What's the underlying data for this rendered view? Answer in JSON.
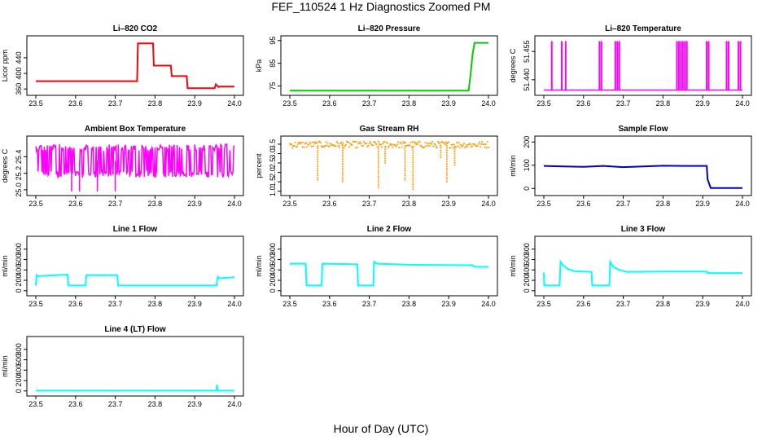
{
  "main_title": "FEF_110524  1 Hz Diagnostics Zoomed PM",
  "x_axis_title": "Hour of Day (UTC)",
  "chart_data": [
    {
      "type": "line",
      "title": "Li–820 CO2",
      "ylabel": "Licor ppm",
      "color": "#ff0000",
      "xlim": [
        23.5,
        24.0
      ],
      "ylim": [
        350,
        490
      ],
      "xticks": [
        "23.5",
        "23.6",
        "23.7",
        "23.8",
        "23.9",
        "24.0"
      ],
      "yticks": [
        "360",
        "400",
        "440"
      ],
      "ytick_values": [
        360,
        400,
        440
      ],
      "series": [
        {
          "x": [
            23.5,
            23.6,
            23.7,
            23.755,
            23.757,
            23.795,
            23.797,
            23.84,
            23.842,
            23.88,
            23.882,
            23.95,
            23.953,
            23.96,
            23.962,
            24.0
          ],
          "y": [
            380,
            380,
            380,
            380,
            477,
            477,
            420,
            420,
            393,
            393,
            362,
            362,
            372,
            365,
            366,
            366
          ]
        }
      ]
    },
    {
      "type": "line",
      "title": "Li–820 Pressure",
      "ylabel": "kPa",
      "color": "#00cc00",
      "xlim": [
        23.5,
        24.0
      ],
      "ylim": [
        72,
        96
      ],
      "xticks": [
        "23.5",
        "23.6",
        "23.7",
        "23.8",
        "23.9",
        "24.0"
      ],
      "yticks": [
        "75",
        "85",
        "95"
      ],
      "ytick_values": [
        75,
        85,
        95
      ],
      "series": [
        {
          "x": [
            23.5,
            23.92,
            23.94,
            23.95,
            23.955,
            23.96,
            23.965,
            24.0
          ],
          "y": [
            73,
            73,
            73,
            73,
            80,
            89,
            94,
            94
          ]
        }
      ]
    },
    {
      "type": "line",
      "title": "Li–820 Temperature",
      "ylabel": "degrees C",
      "color": "#ff00ff",
      "xlim": [
        23.5,
        24.0
      ],
      "ylim": [
        51.433,
        51.462
      ],
      "xticks": [
        "23.5",
        "23.6",
        "23.7",
        "23.8",
        "23.9",
        "24.0"
      ],
      "yticks": [
        "51.440",
        "51.455"
      ],
      "ytick_values": [
        51.44,
        51.455
      ],
      "spike_low": 51.4345,
      "spike_high": 51.4605,
      "spikes": [
        23.52,
        23.545,
        23.555,
        23.64,
        23.645,
        23.68,
        23.685,
        23.69,
        23.835,
        23.84,
        23.845,
        23.85,
        23.855,
        23.86,
        23.91,
        23.915,
        23.96,
        23.965,
        23.99,
        23.995
      ]
    },
    {
      "type": "line",
      "title": "Ambient Box Temperature",
      "ylabel": "degrees C",
      "color": "#ff00ff",
      "xlim": [
        23.5,
        24.0
      ],
      "ylim": [
        24.96,
        25.62
      ],
      "xticks": [
        "23.5",
        "23.6",
        "23.7",
        "23.8",
        "23.9",
        "24.0"
      ],
      "yticks": [
        "25.0",
        "25.2",
        "25.4"
      ],
      "ytick_values": [
        25.0,
        25.2,
        25.4
      ],
      "noise": {
        "low": 25.15,
        "high": 25.55,
        "mid": 25.35,
        "dips": [
          23.59,
          23.61,
          23.655,
          23.7
        ]
      }
    },
    {
      "type": "scatter",
      "title": "Gas Stream RH",
      "ylabel": "percent",
      "color": "#ff9900",
      "xlim": [
        23.5,
        24.0
      ],
      "ylim": [
        0.9,
        3.8
      ],
      "xticks": [
        "23.5",
        "23.6",
        "23.7",
        "23.8",
        "23.9",
        "24.0"
      ],
      "yticks": [
        "1.0",
        "1.5",
        "2.0",
        "2.5",
        "3.0",
        "3.5"
      ],
      "ytick_values": [
        1.0,
        1.5,
        2.0,
        2.5,
        3.0,
        3.5
      ],
      "noise": {
        "low": 3.3,
        "high": 3.65,
        "mid": 3.45
      },
      "dips": [
        {
          "x": 23.57,
          "y": 1.6
        },
        {
          "x": 23.633,
          "y": 1.5
        },
        {
          "x": 23.723,
          "y": 1.2
        },
        {
          "x": 23.74,
          "y": 2.5
        },
        {
          "x": 23.79,
          "y": 1.6
        },
        {
          "x": 23.81,
          "y": 1.1
        },
        {
          "x": 23.88,
          "y": 2.8
        },
        {
          "x": 23.895,
          "y": 1.5
        },
        {
          "x": 23.915,
          "y": 2.4
        }
      ]
    },
    {
      "type": "line",
      "title": "Sample Flow",
      "ylabel": "ml/min",
      "color": "#0000cc",
      "xlim": [
        23.5,
        24.0
      ],
      "ylim": [
        -20,
        215
      ],
      "xticks": [
        "23.5",
        "23.6",
        "23.7",
        "23.8",
        "23.9",
        "24.0"
      ],
      "yticks": [
        "0",
        "100",
        "200"
      ],
      "ytick_values": [
        0,
        100,
        200
      ],
      "series": [
        {
          "x": [
            23.5,
            23.55,
            23.6,
            23.65,
            23.7,
            23.75,
            23.8,
            23.85,
            23.91,
            23.912,
            23.92,
            24.0
          ],
          "y": [
            97,
            95,
            93,
            97,
            92,
            95,
            98,
            97,
            97,
            40,
            2,
            2
          ]
        }
      ]
    },
    {
      "type": "line",
      "title": "Line 1 Flow",
      "ylabel": "ml/min",
      "color": "#00ffff",
      "xlim": [
        23.5,
        24.0
      ],
      "ylim": [
        -50,
        1000
      ],
      "xticks": [
        "23.5",
        "23.6",
        "23.7",
        "23.8",
        "23.9",
        "24.0"
      ],
      "yticks": [
        "0",
        "200",
        "400",
        "600",
        "800"
      ],
      "ytick_values": [
        0,
        200,
        400,
        600,
        800
      ],
      "series": [
        {
          "x": [
            23.5,
            23.502,
            23.504,
            23.58,
            23.582,
            23.625,
            23.627,
            23.705,
            23.707,
            23.955,
            23.958,
            23.96,
            24.0
          ],
          "y": [
            100,
            300,
            280,
            310,
            100,
            100,
            300,
            300,
            100,
            100,
            280,
            240,
            260
          ]
        }
      ]
    },
    {
      "type": "line",
      "title": "Line 2 Flow",
      "ylabel": "ml/min",
      "color": "#00ffff",
      "xlim": [
        23.5,
        24.0
      ],
      "ylim": [
        -50,
        1000
      ],
      "xticks": [
        "23.5",
        "23.6",
        "23.7",
        "23.8",
        "23.9",
        "24.0"
      ],
      "yticks": [
        "0",
        "200",
        "400",
        "600",
        "800"
      ],
      "ytick_values": [
        0,
        200,
        400,
        600,
        800
      ],
      "series": [
        {
          "x": [
            23.5,
            23.54,
            23.542,
            23.58,
            23.582,
            23.67,
            23.672,
            23.71,
            23.712,
            23.72,
            23.8,
            23.96,
            23.965,
            24.0
          ],
          "y": [
            520,
            520,
            100,
            100,
            520,
            510,
            100,
            100,
            560,
            520,
            500,
            490,
            460,
            460
          ]
        }
      ]
    },
    {
      "type": "line",
      "title": "Line 3 Flow",
      "ylabel": "ml/min",
      "color": "#00ffff",
      "xlim": [
        23.5,
        24.0
      ],
      "ylim": [
        -50,
        1000
      ],
      "xticks": [
        "23.5",
        "23.6",
        "23.7",
        "23.8",
        "23.9",
        "24.0"
      ],
      "yticks": [
        "0",
        "200",
        "400",
        "600",
        "800"
      ],
      "ytick_values": [
        0,
        200,
        400,
        600,
        800
      ],
      "series": [
        {
          "x": [
            23.5,
            23.501,
            23.503,
            23.54,
            23.542,
            23.55,
            23.56,
            23.575,
            23.62,
            23.622,
            23.665,
            23.667,
            23.675,
            23.69,
            23.71,
            23.8,
            23.9,
            23.91,
            23.912,
            24.0
          ],
          "y": [
            350,
            100,
            100,
            100,
            560,
            480,
            420,
            380,
            360,
            100,
            100,
            560,
            460,
            400,
            360,
            370,
            370,
            370,
            340,
            340
          ]
        }
      ]
    },
    {
      "type": "line",
      "title": "Line 4 (LT) Flow",
      "ylabel": "ml/min",
      "color": "#00ffff",
      "xlim": [
        23.5,
        24.0
      ],
      "ylim": [
        -50,
        1000
      ],
      "xticks": [
        "23.5",
        "23.6",
        "23.7",
        "23.8",
        "23.9",
        "24.0"
      ],
      "yticks": [
        "0",
        "200",
        "400",
        "600",
        "800"
      ],
      "ytick_values": [
        0,
        200,
        400,
        600,
        800
      ],
      "series": [
        {
          "x": [
            23.5,
            23.955,
            23.956,
            23.958,
            23.96,
            24.0
          ],
          "y": [
            5,
            5,
            120,
            20,
            5,
            5
          ]
        }
      ]
    }
  ]
}
